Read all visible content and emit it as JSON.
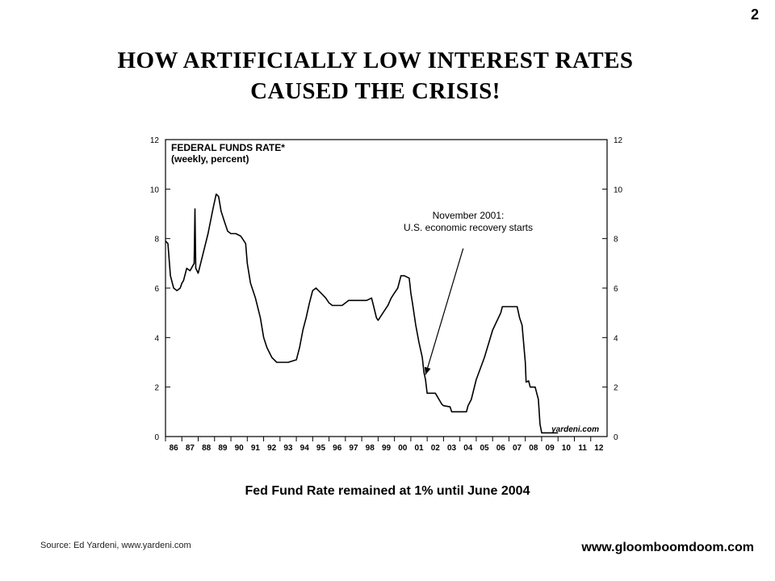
{
  "slide_number": "2",
  "title_lines": [
    "HOW ARTIFICIALLY  LOW INTEREST RATES",
    "CAUSED THE CRISIS!"
  ],
  "caption": "Fed Fund Rate remained at 1% until June 2004",
  "source": "Source: Ed Yardeni, www.yardeni.com",
  "website": "www.gloomboomdoom.com",
  "chart_data": {
    "type": "line",
    "title": "FEDERAL FUNDS RATE*",
    "subtitle": "(weekly, percent)",
    "watermark": "yardeni.com",
    "annotation": {
      "lines": [
        "November 2001:",
        "U.S. economic recovery starts"
      ],
      "x": 2001.9,
      "y": 2.5
    },
    "xlim": [
      1986,
      2013
    ],
    "ylim": [
      0,
      12
    ],
    "y_ticks": [
      0,
      2,
      4,
      6,
      8,
      10,
      12
    ],
    "x_tick_labels": [
      "86",
      "87",
      "88",
      "89",
      "90",
      "91",
      "92",
      "93",
      "94",
      "95",
      "96",
      "97",
      "98",
      "99",
      "00",
      "01",
      "02",
      "03",
      "04",
      "05",
      "06",
      "07",
      "08",
      "09",
      "10",
      "11",
      "12"
    ],
    "grid": false,
    "line_color": "#000000",
    "series": [
      {
        "x": [
          1986.0,
          1986.15,
          1986.3,
          1986.5,
          1986.7,
          1986.9,
          1987.0,
          1987.1,
          1987.3,
          1987.5,
          1987.75,
          1987.8,
          1987.85,
          1988.0,
          1988.3,
          1988.6,
          1988.9,
          1989.1,
          1989.25,
          1989.4,
          1989.6,
          1989.8,
          1990.0,
          1990.3,
          1990.6,
          1990.9,
          1991.0,
          1991.2,
          1991.5,
          1991.8,
          1992.0,
          1992.2,
          1992.5,
          1992.8,
          1993.0,
          1993.5,
          1994.0,
          1994.2,
          1994.4,
          1994.6,
          1994.8,
          1995.0,
          1995.2,
          1995.5,
          1995.8,
          1996.0,
          1996.2,
          1996.5,
          1996.8,
          1997.0,
          1997.2,
          1997.5,
          1997.8,
          1998.0,
          1998.3,
          1998.6,
          1998.75,
          1998.9,
          1999.0,
          1999.3,
          1999.6,
          1999.8,
          2000.0,
          2000.2,
          2000.4,
          2000.6,
          2000.9,
          2001.0,
          2001.1,
          2001.3,
          2001.5,
          2001.7,
          2001.8,
          2001.9,
          2002.0,
          2002.5,
          2002.9,
          2003.0,
          2003.4,
          2003.5,
          2004.0,
          2004.4,
          2004.5,
          2004.7,
          2005.0,
          2005.5,
          2006.0,
          2006.5,
          2006.6,
          2007.0,
          2007.5,
          2007.65,
          2007.8,
          2008.0,
          2008.05,
          2008.2,
          2008.3,
          2008.6,
          2008.8,
          2008.9,
          2009.0,
          2009.5,
          2010.0
        ],
        "y": [
          7.9,
          7.8,
          6.5,
          6.0,
          5.9,
          6.0,
          6.2,
          6.3,
          6.8,
          6.7,
          7.0,
          9.2,
          6.8,
          6.6,
          7.4,
          8.2,
          9.2,
          9.8,
          9.7,
          9.1,
          8.7,
          8.3,
          8.2,
          8.2,
          8.1,
          7.8,
          7.0,
          6.2,
          5.6,
          4.8,
          4.0,
          3.6,
          3.2,
          3.0,
          3.0,
          3.0,
          3.1,
          3.6,
          4.3,
          4.8,
          5.4,
          5.9,
          6.0,
          5.8,
          5.6,
          5.4,
          5.3,
          5.3,
          5.3,
          5.4,
          5.5,
          5.5,
          5.5,
          5.5,
          5.5,
          5.6,
          5.2,
          4.8,
          4.7,
          5.0,
          5.3,
          5.6,
          5.8,
          6.0,
          6.5,
          6.5,
          6.4,
          5.8,
          5.4,
          4.5,
          3.8,
          3.2,
          2.6,
          2.3,
          1.75,
          1.75,
          1.3,
          1.25,
          1.2,
          1.0,
          1.0,
          1.0,
          1.25,
          1.5,
          2.3,
          3.2,
          4.3,
          5.0,
          5.25,
          5.25,
          5.25,
          4.8,
          4.5,
          3.0,
          2.2,
          2.25,
          2.0,
          2.0,
          1.5,
          0.5,
          0.15,
          0.15,
          0.15
        ]
      }
    ]
  }
}
